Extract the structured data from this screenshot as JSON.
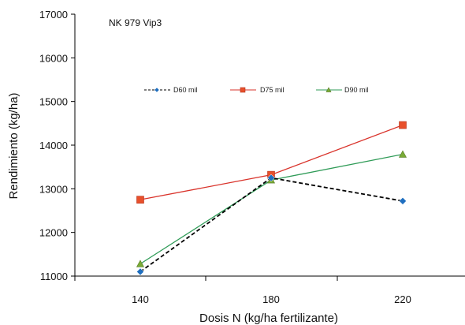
{
  "chart_data": {
    "type": "line",
    "annotation": "NK 979 Vip3",
    "xlabel": "Dosis N (kg/ha fertilizante)",
    "ylabel": "Rendimiento (kg/ha)",
    "categories": [
      "140",
      "180",
      "220"
    ],
    "ylim": [
      11000,
      17000
    ],
    "yticks": [
      "11000",
      "12000",
      "13000",
      "14000",
      "15000",
      "16000",
      "17000"
    ],
    "grid": false,
    "legend_position": "top-center",
    "series": [
      {
        "name": "D60 mil",
        "values": [
          11100,
          13250,
          12720
        ],
        "color": "#1f6fc0",
        "marker": "diamond",
        "line_color": "#000000",
        "line_style": "dashed"
      },
      {
        "name": "D75 mil",
        "values": [
          12750,
          13320,
          14460
        ],
        "color": "#e8502b",
        "marker": "square",
        "line_color": "#d9332b",
        "line_style": "solid"
      },
      {
        "name": "D90 mil",
        "values": [
          11280,
          13200,
          13790
        ],
        "color": "#7aab36",
        "marker": "triangle",
        "line_color": "#2f9b57",
        "line_style": "solid"
      }
    ]
  }
}
